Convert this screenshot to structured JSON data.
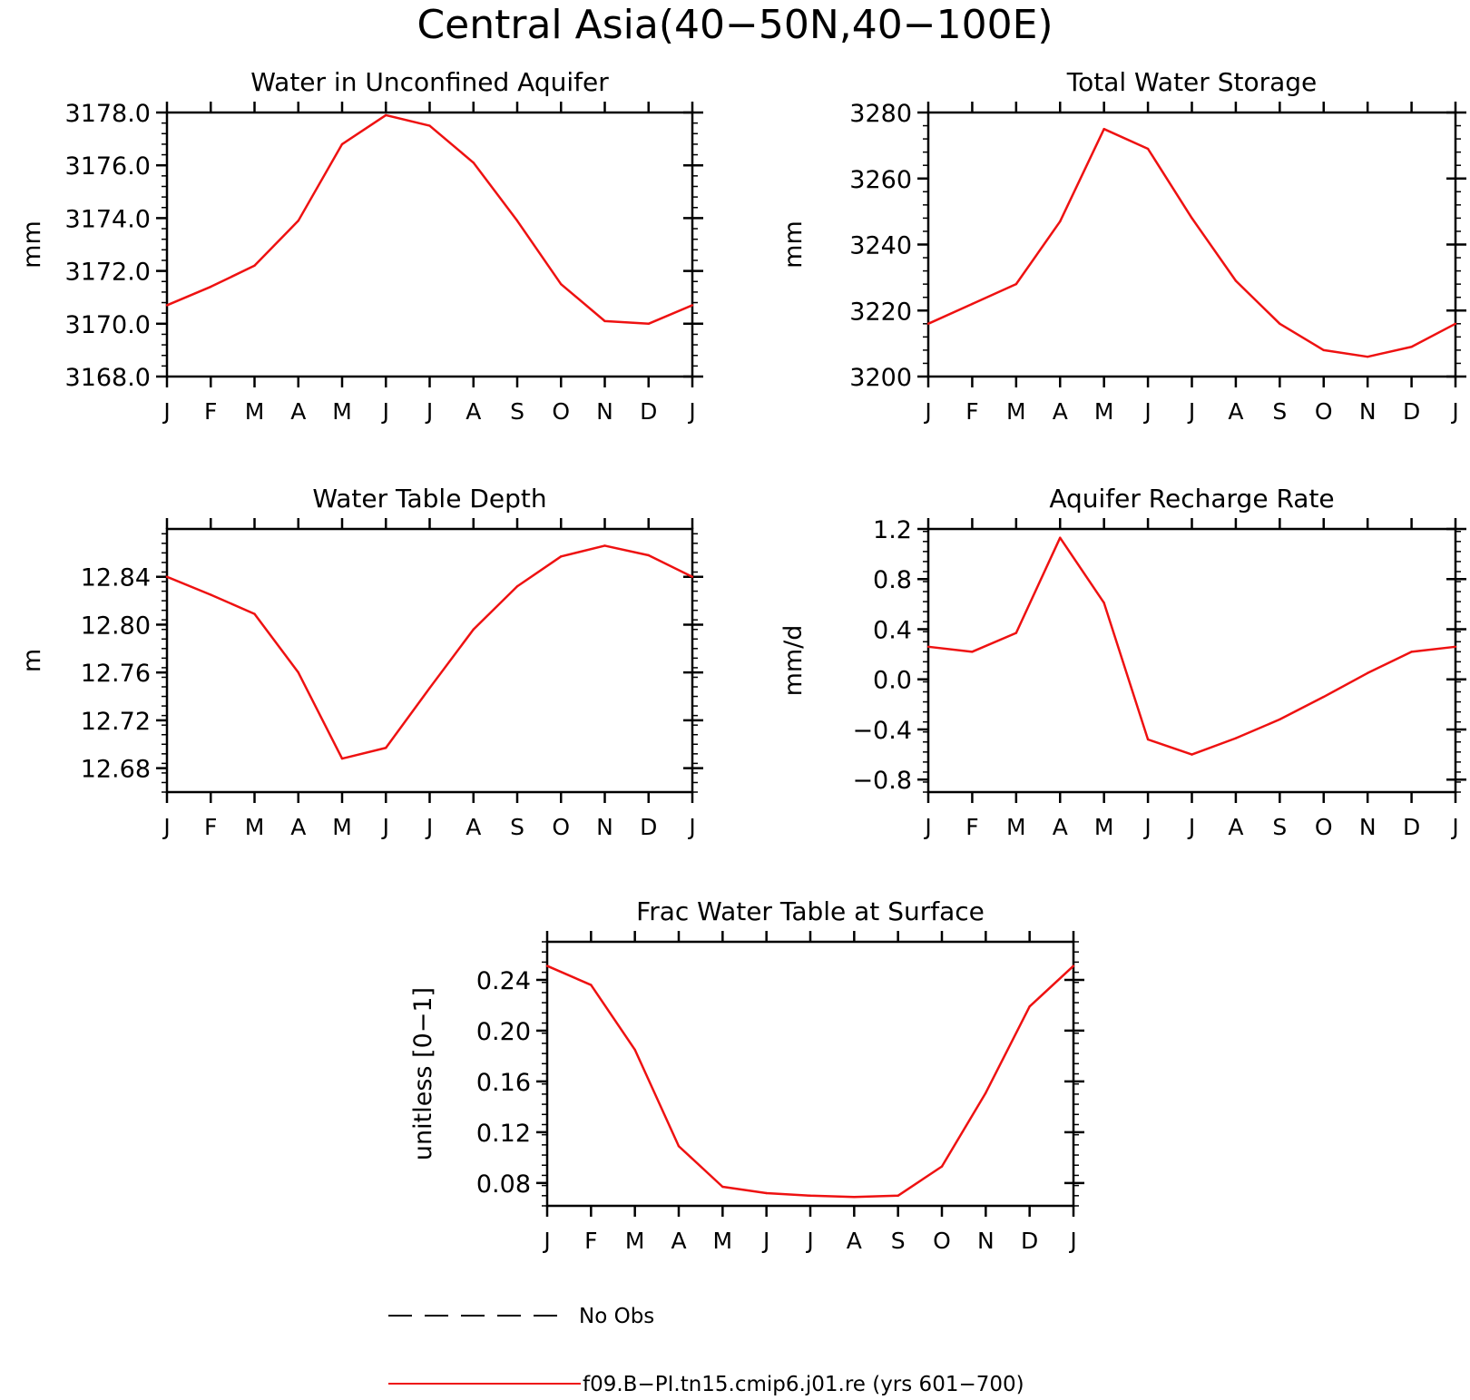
{
  "figure_title": "Central Asia(40−50N,40−100E)",
  "month_labels": [
    "J",
    "F",
    "M",
    "A",
    "M",
    "J",
    "J",
    "A",
    "S",
    "O",
    "N",
    "D",
    "J"
  ],
  "line_color": "#ee1111",
  "chart_data": [
    {
      "type": "line",
      "title": "Water in Unconfined Aquifer",
      "ylabel": "mm",
      "ylim": [
        3168,
        3178
      ],
      "yticks": [
        3168,
        3170,
        3172,
        3174,
        3176,
        3178
      ],
      "ytick_labels": [
        "3168.0",
        "3170.0",
        "3172.0",
        "3174.0",
        "3176.0",
        "3178.0"
      ],
      "x": [
        "J",
        "F",
        "M",
        "A",
        "M",
        "J",
        "J",
        "A",
        "S",
        "O",
        "N",
        "D",
        "J"
      ],
      "series": [
        {
          "values": [
            3170.7,
            3171.4,
            3172.2,
            3173.9,
            3176.8,
            3177.9,
            3177.5,
            3176.1,
            3173.9,
            3171.5,
            3170.1,
            3170.0,
            3170.7
          ]
        }
      ]
    },
    {
      "type": "line",
      "title": "Total Water Storage",
      "ylabel": "mm",
      "ylim": [
        3200,
        3280
      ],
      "yticks": [
        3200,
        3220,
        3240,
        3260,
        3280
      ],
      "ytick_labels": [
        "3200",
        "3220",
        "3240",
        "3260",
        "3280"
      ],
      "x": [
        "J",
        "F",
        "M",
        "A",
        "M",
        "J",
        "J",
        "A",
        "S",
        "O",
        "N",
        "D",
        "J"
      ],
      "series": [
        {
          "values": [
            3216,
            3222,
            3228,
            3247,
            3275,
            3269,
            3248,
            3229,
            3216,
            3208,
            3206,
            3209,
            3216
          ]
        }
      ]
    },
    {
      "type": "line",
      "title": "Water Table Depth",
      "ylabel": "m",
      "ylim": [
        12.66,
        12.88
      ],
      "yticks": [
        12.68,
        12.72,
        12.76,
        12.8,
        12.84
      ],
      "ytick_labels": [
        "12.68",
        "12.72",
        "12.76",
        "12.80",
        "12.84"
      ],
      "x": [
        "J",
        "F",
        "M",
        "A",
        "M",
        "J",
        "J",
        "A",
        "S",
        "O",
        "N",
        "D",
        "J"
      ],
      "series": [
        {
          "values": [
            12.84,
            12.825,
            12.809,
            12.76,
            12.688,
            12.697,
            12.747,
            12.796,
            12.832,
            12.857,
            12.866,
            12.858,
            12.84
          ]
        }
      ]
    },
    {
      "type": "line",
      "title": "Aquifer Recharge Rate",
      "ylabel": "mm/d",
      "ylim": [
        -0.9,
        1.2
      ],
      "yticks": [
        -0.8,
        -0.4,
        0.0,
        0.4,
        0.8,
        1.2
      ],
      "ytick_labels": [
        "−0.8",
        "−0.4",
        "0.0",
        "0.4",
        "0.8",
        "1.2"
      ],
      "x": [
        "J",
        "F",
        "M",
        "A",
        "M",
        "J",
        "J",
        "A",
        "S",
        "O",
        "N",
        "D",
        "J"
      ],
      "series": [
        {
          "values": [
            0.26,
            0.22,
            0.37,
            1.13,
            0.61,
            -0.48,
            -0.6,
            -0.47,
            -0.32,
            -0.14,
            0.05,
            0.22,
            0.26
          ]
        }
      ]
    },
    {
      "type": "line",
      "title": "Frac Water Table at Surface",
      "ylabel": "unitless [0−1]",
      "ylim": [
        0.062,
        0.27
      ],
      "yticks": [
        0.08,
        0.12,
        0.16,
        0.2,
        0.24
      ],
      "ytick_labels": [
        "0.08",
        "0.12",
        "0.16",
        "0.20",
        "0.24"
      ],
      "x": [
        "J",
        "F",
        "M",
        "A",
        "M",
        "J",
        "J",
        "A",
        "S",
        "O",
        "N",
        "D",
        "J"
      ],
      "series": [
        {
          "values": [
            0.251,
            0.236,
            0.185,
            0.109,
            0.077,
            0.072,
            0.07,
            0.069,
            0.07,
            0.093,
            0.151,
            0.219,
            0.251
          ]
        }
      ]
    }
  ],
  "legend": {
    "obs_label": "No Obs",
    "model_label": "f09.B−PI.tn15.cmip6.j01.re (yrs 601−700)"
  }
}
